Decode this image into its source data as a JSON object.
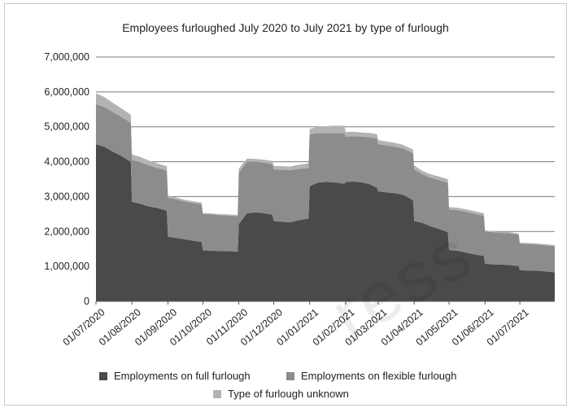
{
  "chart_data": {
    "type": "area",
    "stacked": true,
    "title": "Employees furloughed July 2020 to July 2021 by type of furlough",
    "xlabel": "",
    "ylabel": "",
    "ylim": [
      0,
      7000000
    ],
    "yticks": [
      "0",
      "1,000,000",
      "2,000,000",
      "3,000,000",
      "4,000,000",
      "5,000,000",
      "6,000,000",
      "7,000,000"
    ],
    "xtick_labels": [
      "01/07/2020",
      "01/08/2020",
      "01/09/2020",
      "01/10/2020",
      "01/11/2020",
      "01/12/2020",
      "01/01/2021",
      "01/02/2021",
      "01/03/2021",
      "01/04/2021",
      "01/05/2021",
      "01/06/2021",
      "01/07/2021"
    ],
    "grid": "horizontal",
    "legend_position": "bottom",
    "x": [
      "01/07/2020",
      "08/07/2020",
      "15/07/2020",
      "22/07/2020",
      "31/07/2020",
      "01/08/2020",
      "08/08/2020",
      "15/08/2020",
      "22/08/2020",
      "31/08/2020",
      "01/09/2020",
      "08/09/2020",
      "15/09/2020",
      "22/09/2020",
      "30/09/2020",
      "01/10/2020",
      "08/10/2020",
      "15/10/2020",
      "22/10/2020",
      "31/10/2020",
      "01/11/2020",
      "08/11/2020",
      "15/11/2020",
      "22/11/2020",
      "30/11/2020",
      "01/12/2020",
      "08/12/2020",
      "15/12/2020",
      "22/12/2020",
      "31/12/2020",
      "01/01/2021",
      "08/01/2021",
      "15/01/2021",
      "22/01/2021",
      "31/01/2021",
      "01/02/2021",
      "08/02/2021",
      "15/02/2021",
      "22/02/2021",
      "28/02/2021",
      "01/03/2021",
      "08/03/2021",
      "15/03/2021",
      "22/03/2021",
      "31/03/2021",
      "01/04/2021",
      "08/04/2021",
      "15/04/2021",
      "22/04/2021",
      "30/04/2021",
      "01/05/2021",
      "08/05/2021",
      "15/05/2021",
      "22/05/2021",
      "31/05/2021",
      "01/06/2021",
      "08/06/2021",
      "15/06/2021",
      "22/06/2021",
      "30/06/2021",
      "01/07/2021",
      "08/07/2021",
      "15/07/2021",
      "22/07/2021",
      "31/07/2021"
    ],
    "series": [
      {
        "name": "Employments on full furlough",
        "color": "#4a4a4a",
        "values": [
          4500000,
          4430000,
          4300000,
          4180000,
          4000000,
          2850000,
          2800000,
          2720000,
          2680000,
          2600000,
          1850000,
          1820000,
          1780000,
          1740000,
          1700000,
          1460000,
          1450000,
          1440000,
          1440000,
          1420000,
          2220000,
          2520000,
          2550000,
          2530000,
          2480000,
          2300000,
          2280000,
          2260000,
          2320000,
          2370000,
          3300000,
          3400000,
          3420000,
          3410000,
          3370000,
          3420000,
          3430000,
          3410000,
          3350000,
          3250000,
          3150000,
          3120000,
          3100000,
          3060000,
          2900000,
          2300000,
          2250000,
          2150000,
          2080000,
          1980000,
          1470000,
          1450000,
          1400000,
          1350000,
          1300000,
          1080000,
          1060000,
          1050000,
          1040000,
          1010000,
          890000,
          880000,
          880000,
          860000,
          830000
        ]
      },
      {
        "name": "Employments on flexible furlough",
        "color": "#8c8c8c",
        "values": [
          1150000,
          1140000,
          1130000,
          1120000,
          1120000,
          1200000,
          1190000,
          1180000,
          1150000,
          1150000,
          1120000,
          1100000,
          1080000,
          1080000,
          1080000,
          1040000,
          1040000,
          1030000,
          1020000,
          1020000,
          1460000,
          1480000,
          1450000,
          1450000,
          1450000,
          1480000,
          1490000,
          1500000,
          1470000,
          1450000,
          1480000,
          1420000,
          1400000,
          1410000,
          1450000,
          1300000,
          1300000,
          1310000,
          1350000,
          1420000,
          1350000,
          1350000,
          1330000,
          1320000,
          1350000,
          1480000,
          1390000,
          1390000,
          1400000,
          1420000,
          1160000,
          1160000,
          1170000,
          1170000,
          1150000,
          920000,
          920000,
          910000,
          910000,
          900000,
          760000,
          760000,
          750000,
          750000,
          750000
        ]
      },
      {
        "name": "Type of furlough unknown",
        "color": "#b3b3b3",
        "values": [
          310000,
          290000,
          270000,
          250000,
          230000,
          160000,
          150000,
          140000,
          130000,
          120000,
          60000,
          55000,
          50000,
          50000,
          50000,
          30000,
          30000,
          30000,
          30000,
          30000,
          120000,
          90000,
          80000,
          80000,
          90000,
          100000,
          100000,
          100000,
          120000,
          130000,
          160000,
          180000,
          200000,
          210000,
          210000,
          130000,
          130000,
          120000,
          120000,
          120000,
          120000,
          110000,
          110000,
          110000,
          100000,
          110000,
          100000,
          100000,
          100000,
          100000,
          70000,
          70000,
          70000,
          70000,
          70000,
          30000,
          30000,
          30000,
          30000,
          30000,
          30000,
          30000,
          30000,
          30000,
          30000
        ]
      }
    ]
  },
  "watermark": "ress"
}
